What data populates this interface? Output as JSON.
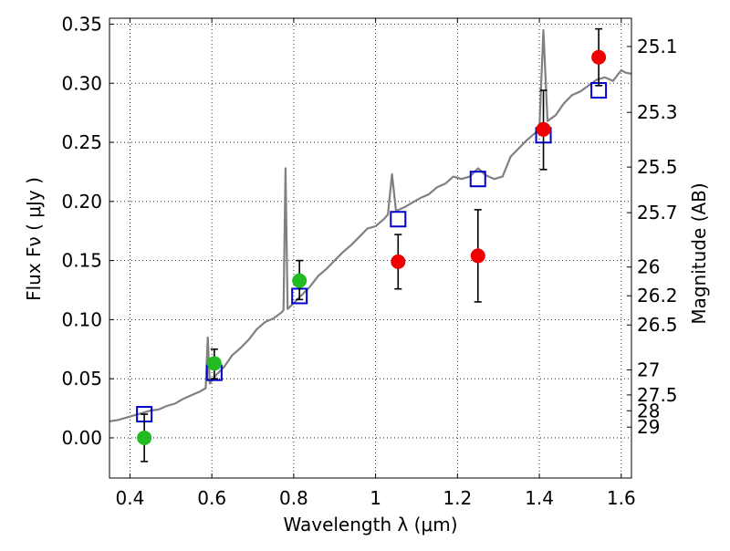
{
  "chart_data": {
    "type": "scatter",
    "xlabel": "Wavelength  λ (μm)",
    "ylabel": "Flux  Fν  ( μJy )",
    "y2label": "Magnitude (AB)",
    "xlim": [
      0.35,
      1.625
    ],
    "ylim": [
      -0.034,
      0.355
    ],
    "grid": true,
    "x_ticks": [
      {
        "value": 0.4,
        "label": "0.4"
      },
      {
        "value": 0.6,
        "label": "0.6"
      },
      {
        "value": 0.8,
        "label": "0.8"
      },
      {
        "value": 1.0,
        "label": "1"
      },
      {
        "value": 1.2,
        "label": "1.2"
      },
      {
        "value": 1.4,
        "label": "1.4"
      },
      {
        "value": 1.6,
        "label": "1.6"
      }
    ],
    "y_ticks": [
      {
        "value": 0.0,
        "label": "0.00"
      },
      {
        "value": 0.05,
        "label": "0.05"
      },
      {
        "value": 0.1,
        "label": "0.10"
      },
      {
        "value": 0.15,
        "label": "0.15"
      },
      {
        "value": 0.2,
        "label": "0.20"
      },
      {
        "value": 0.25,
        "label": "0.25"
      },
      {
        "value": 0.3,
        "label": "0.30"
      },
      {
        "value": 0.35,
        "label": "0.35"
      }
    ],
    "y2_ticks": [
      {
        "flux": 0.3311,
        "label": "25.1"
      },
      {
        "flux": 0.2754,
        "label": "25.3"
      },
      {
        "flux": 0.2291,
        "label": "25.5"
      },
      {
        "flux": 0.1905,
        "label": "25.7"
      },
      {
        "flux": 0.1445,
        "label": "26"
      },
      {
        "flux": 0.1202,
        "label": "26.2"
      },
      {
        "flux": 0.0955,
        "label": "26.5"
      },
      {
        "flux": 0.0575,
        "label": "27"
      },
      {
        "flux": 0.0363,
        "label": "27.5"
      },
      {
        "flux": 0.0229,
        "label": "28"
      },
      {
        "flux": 0.0091,
        "label": "29"
      }
    ],
    "series": [
      {
        "name": "model spectrum",
        "kind": "line",
        "color": "#808080",
        "points": [
          [
            0.35,
            0.014
          ],
          [
            0.37,
            0.015
          ],
          [
            0.39,
            0.017
          ],
          [
            0.41,
            0.019
          ],
          [
            0.43,
            0.021
          ],
          [
            0.45,
            0.023
          ],
          [
            0.47,
            0.024
          ],
          [
            0.49,
            0.027
          ],
          [
            0.51,
            0.029
          ],
          [
            0.53,
            0.033
          ],
          [
            0.55,
            0.036
          ],
          [
            0.57,
            0.039
          ],
          [
            0.585,
            0.042
          ],
          [
            0.59,
            0.085
          ],
          [
            0.595,
            0.046
          ],
          [
            0.61,
            0.053
          ],
          [
            0.63,
            0.06
          ],
          [
            0.65,
            0.07
          ],
          [
            0.67,
            0.076
          ],
          [
            0.69,
            0.083
          ],
          [
            0.71,
            0.092
          ],
          [
            0.73,
            0.098
          ],
          [
            0.75,
            0.101
          ],
          [
            0.77,
            0.106
          ],
          [
            0.775,
            0.108
          ],
          [
            0.78,
            0.228
          ],
          [
            0.785,
            0.109
          ],
          [
            0.8,
            0.114
          ],
          [
            0.82,
            0.121
          ],
          [
            0.84,
            0.128
          ],
          [
            0.86,
            0.137
          ],
          [
            0.88,
            0.143
          ],
          [
            0.9,
            0.15
          ],
          [
            0.92,
            0.157
          ],
          [
            0.94,
            0.163
          ],
          [
            0.96,
            0.17
          ],
          [
            0.98,
            0.177
          ],
          [
            1.0,
            0.179
          ],
          [
            1.02,
            0.185
          ],
          [
            1.03,
            0.189
          ],
          [
            1.04,
            0.223
          ],
          [
            1.05,
            0.192
          ],
          [
            1.07,
            0.195
          ],
          [
            1.09,
            0.199
          ],
          [
            1.11,
            0.203
          ],
          [
            1.13,
            0.206
          ],
          [
            1.15,
            0.212
          ],
          [
            1.17,
            0.215
          ],
          [
            1.19,
            0.221
          ],
          [
            1.21,
            0.219
          ],
          [
            1.23,
            0.221
          ],
          [
            1.25,
            0.228
          ],
          [
            1.27,
            0.222
          ],
          [
            1.29,
            0.219
          ],
          [
            1.31,
            0.221
          ],
          [
            1.33,
            0.238
          ],
          [
            1.35,
            0.245
          ],
          [
            1.37,
            0.252
          ],
          [
            1.39,
            0.258
          ],
          [
            1.4,
            0.262
          ],
          [
            1.41,
            0.345
          ],
          [
            1.42,
            0.268
          ],
          [
            1.44,
            0.273
          ],
          [
            1.46,
            0.283
          ],
          [
            1.48,
            0.29
          ],
          [
            1.5,
            0.293
          ],
          [
            1.52,
            0.298
          ],
          [
            1.54,
            0.303
          ],
          [
            1.56,
            0.305
          ],
          [
            1.58,
            0.302
          ],
          [
            1.6,
            0.311
          ],
          [
            1.61,
            0.309
          ],
          [
            1.625,
            0.308
          ]
        ]
      },
      {
        "name": "model photometry",
        "kind": "open-square",
        "color": "#0000cc",
        "points": [
          [
            0.435,
            0.02
          ],
          [
            0.606,
            0.055
          ],
          [
            0.814,
            0.12
          ],
          [
            1.055,
            0.185
          ],
          [
            1.25,
            0.219
          ],
          [
            1.41,
            0.256
          ],
          [
            1.545,
            0.294
          ]
        ]
      },
      {
        "name": "green detections",
        "kind": "filled-circle",
        "color": "#22bb22",
        "points": [
          {
            "x": 0.435,
            "y": 0.0,
            "err_lo": 0.02,
            "err_hi": 0.02
          },
          {
            "x": 0.606,
            "y": 0.063,
            "err_lo": 0.013,
            "err_hi": 0.012
          },
          {
            "x": 0.814,
            "y": 0.133,
            "err_lo": 0.016,
            "err_hi": 0.017
          }
        ]
      },
      {
        "name": "red detections",
        "kind": "filled-circle",
        "color": "#ee0000",
        "points": [
          {
            "x": 1.055,
            "y": 0.149,
            "err_lo": 0.023,
            "err_hi": 0.023
          },
          {
            "x": 1.25,
            "y": 0.154,
            "err_lo": 0.039,
            "err_hi": 0.039
          },
          {
            "x": 1.41,
            "y": 0.261,
            "err_lo": 0.034,
            "err_hi": 0.033
          },
          {
            "x": 1.545,
            "y": 0.322,
            "err_lo": 0.024,
            "err_hi": 0.024
          }
        ]
      }
    ]
  }
}
